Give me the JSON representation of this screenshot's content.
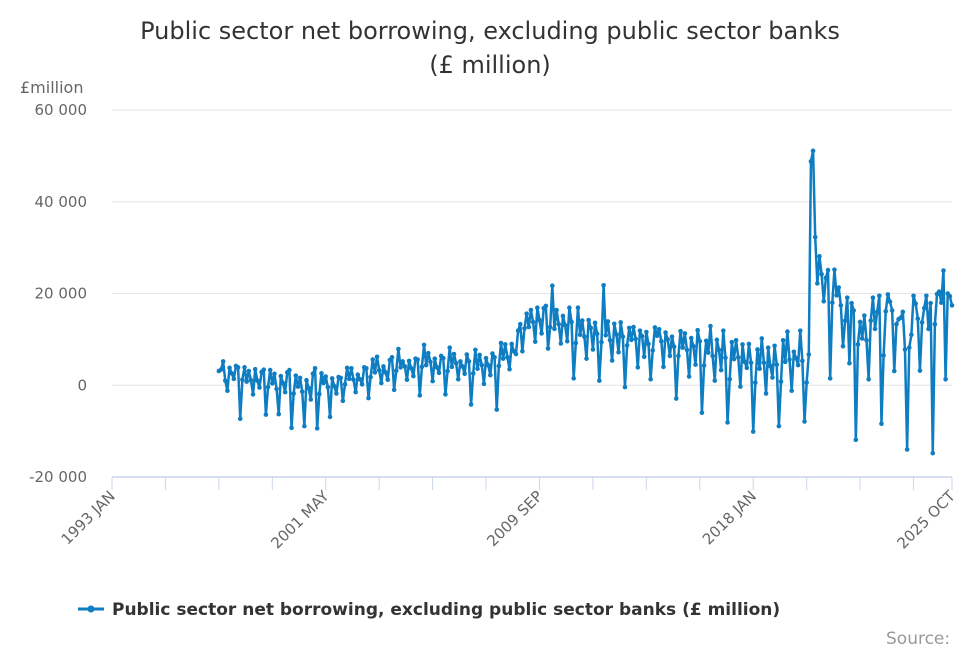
{
  "chart_data": {
    "type": "line",
    "title_line1": "Public sector net borrowing, excluding public sector banks",
    "title_line2": "(£ million)",
    "ylabel": "£million",
    "ylim": [
      -20000,
      60000
    ],
    "yticks": [
      60000,
      40000,
      20000,
      0,
      -20000
    ],
    "ytick_labels": [
      "60 000",
      "40 000",
      "20 000",
      "0",
      "-20 000"
    ],
    "xrange": [
      "1993 JAN",
      "2025 OCT"
    ],
    "xtick_labels": [
      "1993 JAN",
      "2001 MAY",
      "2009 SEP",
      "2018 JAN",
      "2025 OCT"
    ],
    "grid": true,
    "legend_position": "bottom",
    "color": "#0f7dc2",
    "series": [
      {
        "name": "Public sector net borrowing, excluding public sector banks (£ million)",
        "start": "1997 MAR",
        "frequency": "monthly",
        "values": [
          3100,
          3400,
          5200,
          1000,
          -1200,
          3800,
          2600,
          1400,
          4200,
          3900,
          -7300,
          1200,
          3900,
          800,
          3100,
          1100,
          -2000,
          3500,
          1000,
          -500,
          2900,
          3400,
          -6400,
          -400,
          3300,
          400,
          2500,
          -800,
          -6300,
          2000,
          500,
          -1500,
          2800,
          3300,
          -9300,
          -1800,
          2100,
          -300,
          1600,
          -1400,
          -8900,
          1100,
          -600,
          -3100,
          2500,
          3700,
          -9400,
          -1900,
          2600,
          500,
          1900,
          -400,
          -6900,
          1500,
          -200,
          -1800,
          1800,
          1600,
          -3400,
          200,
          3800,
          1400,
          3700,
          1200,
          -1500,
          2300,
          1300,
          200,
          3900,
          3700,
          -2800,
          1800,
          5600,
          2800,
          6200,
          3300,
          500,
          4100,
          2800,
          1200,
          5500,
          6100,
          -1000,
          3200,
          7900,
          3900,
          5200,
          4100,
          1200,
          5300,
          3700,
          2000,
          5800,
          5600,
          -2200,
          4000,
          8800,
          4400,
          7000,
          5100,
          900,
          5800,
          3900,
          2700,
          6400,
          5900,
          -2000,
          3100,
          8200,
          4000,
          6800,
          4800,
          1300,
          5200,
          4100,
          2500,
          6700,
          5200,
          -4200,
          2600,
          7700,
          3600,
          6600,
          4400,
          300,
          5900,
          4400,
          2200,
          6900,
          6100,
          -5300,
          4200,
          9200,
          5800,
          8900,
          6100,
          3500,
          9000,
          7400,
          6800,
          11900,
          13300,
          7400,
          12400,
          15600,
          12700,
          16400,
          13800,
          9500,
          16900,
          14200,
          11300,
          16800,
          17300,
          8000,
          12700,
          21700,
          12300,
          16400,
          13300,
          9100,
          15100,
          13100,
          9600,
          16900,
          13800,
          1500,
          9200,
          16900,
          11000,
          14100,
          10600,
          5800,
          14200,
          12500,
          7800,
          13600,
          11200,
          1000,
          9400,
          21800,
          10900,
          13900,
          9800,
          5400,
          13400,
          11100,
          7200,
          13700,
          10600,
          -400,
          8700,
          12500,
          9900,
          12700,
          10100,
          3900,
          11900,
          10700,
          6200,
          11600,
          9000,
          1300,
          7600,
          12600,
          10800,
          12200,
          9600,
          4000,
          11500,
          10000,
          6400,
          10600,
          8400,
          -2900,
          6400,
          11800,
          8200,
          11300,
          7700,
          1900,
          10300,
          8500,
          4500,
          12000,
          9600,
          -6000,
          4300,
          9700,
          7100,
          12900,
          6400,
          1000,
          9900,
          7700,
          3300,
          11900,
          6000,
          -8100,
          1300,
          9400,
          5700,
          9800,
          6100,
          -300,
          8900,
          5100,
          3800,
          9000,
          4900,
          -10100,
          600,
          7800,
          3600,
          10200,
          4900,
          -1800,
          8200,
          4200,
          1700,
          8600,
          4500,
          -8900,
          800,
          9800,
          5100,
          11700,
          5600,
          -1200,
          7300,
          5900,
          4400,
          11900,
          5300,
          -7900,
          600,
          6700,
          48800,
          51100,
          32300,
          22200,
          28100,
          24200,
          18300,
          23400,
          25100,
          1500,
          18000,
          25200,
          19600,
          21300,
          17400,
          8500,
          14100,
          19100,
          4800,
          17900,
          16300,
          -11900,
          8900,
          13800,
          10200,
          15200,
          9800,
          1300,
          14100,
          19100,
          12300,
          16000,
          19500,
          -8400,
          6500,
          16100,
          19800,
          18200,
          16300,
          3100,
          13300,
          14400,
          14700,
          16000,
          7800,
          -14000,
          8200,
          11000,
          19500,
          17800,
          14500,
          3200,
          13700,
          16800,
          19500,
          12300,
          17900,
          -14800,
          13300,
          19900,
          20400,
          18000,
          25000,
          1300,
          20000,
          19400,
          17400
        ]
      }
    ],
    "source_label": "Source:"
  }
}
